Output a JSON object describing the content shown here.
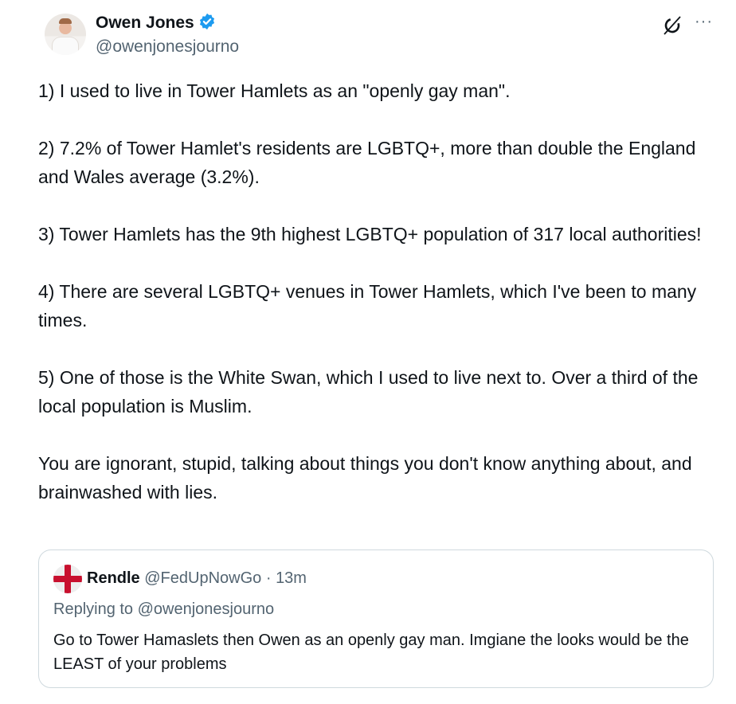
{
  "author": {
    "name": "Owen Jones",
    "handle": "@owenjonesjourno",
    "verified": true
  },
  "icons": {
    "verified": "verified-badge-icon",
    "grok": "grok-icon",
    "more": "more-icon"
  },
  "colors": {
    "verified": "#1d9bf0",
    "secondary_text": "#536471"
  },
  "tweet_text": "1) I used to live in Tower Hamlets as an \"openly gay man\".\n\n2) 7.2% of Tower Hamlet's residents are LGBTQ+, more than double the England and Wales average (3.2%).\n\n3) Tower Hamlets has the 9th highest LGBTQ+ population of 317 local authorities!\n\n4) There are several LGBTQ+ venues in Tower Hamlets, which I've been to many times.\n\n5) One of those is the White Swan, which I used to live next to. Over a third of the local population is Muslim.\n\nYou are ignorant, stupid, talking about things you don't know anything about, and brainwashed with lies.",
  "more_label": "···",
  "quoted": {
    "name": "Rendle",
    "handle": "@FedUpNowGo",
    "separator": " · ",
    "time": "13m",
    "replying_to": "Replying to @owenjonesjourno",
    "text": "Go to Tower Hamaslets then Owen as an openly gay man. Imgiane the looks would be the LEAST of your problems"
  }
}
